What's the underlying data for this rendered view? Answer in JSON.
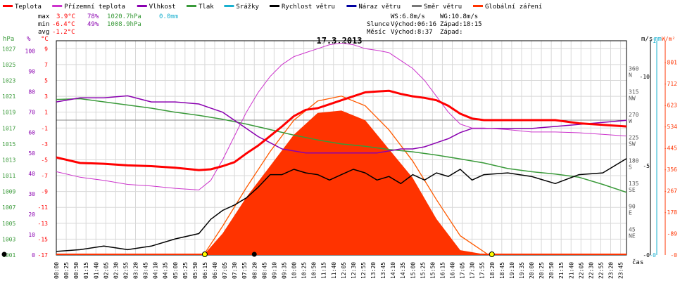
{
  "legend": [
    {
      "label": "Teplota",
      "color": "#ff0000"
    },
    {
      "label": "Přízemní teplota",
      "color": "#cc33cc"
    },
    {
      "label": "Vlhkost",
      "color": "#8a00b0"
    },
    {
      "label": "Tlak",
      "color": "#3a9a3a"
    },
    {
      "label": "Srážky",
      "color": "#19b0cf"
    },
    {
      "label": "Rychlost větru",
      "color": "#000000"
    },
    {
      "label": "Náraz větru",
      "color": "#0000a0"
    },
    {
      "label": "Směr větru",
      "color": "#777777"
    },
    {
      "label": "Globální záření",
      "color": "#ff3300"
    }
  ],
  "stats": {
    "max": {
      "label": "max",
      "temp": "3.9°C",
      "hum": "78%",
      "press": "1020.7hPa",
      "rain": "0.0mm"
    },
    "min": {
      "label": "min",
      "temp": "-6.4°C",
      "hum": "49%",
      "press": "1008.9hPa"
    },
    "avg": {
      "label": "avg",
      "temp": "-1.2°C"
    }
  },
  "wind": {
    "ws": "WS:6.8m/s",
    "wg": "WG:10.8m/s"
  },
  "sun": {
    "label": "Slunce",
    "rise": "Východ:06:16",
    "set": "Západ:18:15"
  },
  "moon": {
    "label": "Měsíc",
    "rise": "Východ:8:37",
    "set": "Západ:"
  },
  "date": "17.3.2013",
  "units": {
    "hpa": "hPa",
    "pct": "%",
    "degc": "°C",
    "ms": "m/s",
    "mm": "mm",
    "wm2": "W/m²",
    "time": "čas"
  },
  "chart_data": {
    "type": "line",
    "title": "17.3.2013",
    "xlabel": "čas",
    "x_ticks": [
      "00:00",
      "00:25",
      "00:50",
      "01:15",
      "01:40",
      "02:05",
      "02:30",
      "02:55",
      "03:20",
      "03:45",
      "04:10",
      "04:35",
      "05:00",
      "05:25",
      "05:50",
      "06:15",
      "06:40",
      "07:05",
      "07:30",
      "07:55",
      "08:20",
      "08:45",
      "09:10",
      "09:35",
      "10:00",
      "10:25",
      "10:50",
      "11:15",
      "11:40",
      "12:05",
      "12:30",
      "12:55",
      "13:20",
      "13:45",
      "14:10",
      "14:35",
      "15:00",
      "15:25",
      "15:50",
      "16:15",
      "16:40",
      "17:05",
      "17:30",
      "17:55",
      "18:20",
      "18:45",
      "19:10",
      "19:35",
      "20:00",
      "20:25",
      "20:50",
      "21:15",
      "21:40",
      "22:05",
      "22:30",
      "22:55",
      "23:20",
      "23:45"
    ],
    "axes": {
      "pressure_hpa": {
        "ticks": [
          "1027",
          "1025",
          "1023",
          "1021",
          "1019",
          "1017",
          "1015",
          "1013",
          "1011",
          "1009",
          "1007",
          "1005",
          "1003",
          "1001"
        ],
        "range": [
          1001,
          1028
        ]
      },
      "humidity_pct": {
        "ticks": [
          "100",
          "90",
          "80",
          "70",
          "60",
          "50",
          "40",
          "30",
          "20",
          "10",
          "0"
        ],
        "range": [
          0,
          105
        ]
      },
      "temperature_c": {
        "ticks": [
          "9",
          "7",
          "5",
          "3",
          "1",
          "-1",
          "-3",
          "-5",
          "-7",
          "-9",
          "-11",
          "-13",
          "-15",
          "-17"
        ],
        "range": [
          -17,
          10
        ]
      },
      "wind_dir": {
        "ticks": [
          "360\nN",
          "315\nNW",
          "270\nW",
          "225\nSW",
          "180\nS",
          "135\nSE",
          "90\nE",
          "45\nNE"
        ],
        "range": [
          0,
          420
        ]
      },
      "radiation_wm2": {
        "ticks": [
          "801",
          "712",
          "623",
          "534",
          "445",
          "356",
          "267",
          "178",
          "89",
          "0"
        ],
        "range": [
          0,
          890
        ]
      },
      "wind_ms": {
        "ticks": [
          "10",
          "5",
          "0"
        ],
        "range": [
          0,
          12
        ]
      },
      "rain_mm": {
        "ticks": [
          "1",
          "0"
        ],
        "range": [
          0,
          1
        ]
      }
    },
    "series": [
      {
        "name": "Teplota",
        "axis": "temperature_c",
        "x": [
          0,
          1,
          2,
          3,
          4,
          5,
          6,
          6.5,
          7,
          7.5,
          8,
          8.5,
          9,
          9.5,
          10,
          10.5,
          11,
          11.5,
          12,
          12.5,
          13,
          13.5,
          14,
          14.5,
          15,
          15.5,
          16,
          16.5,
          17,
          17.5,
          18,
          19,
          20,
          21,
          22,
          23,
          24
        ],
        "values": [
          -4.7,
          -5.4,
          -5.5,
          -5.7,
          -5.8,
          -6.0,
          -6.3,
          -6.2,
          -5.8,
          -5.3,
          -4.2,
          -3.2,
          -2.0,
          -0.8,
          0.5,
          1.3,
          1.5,
          2.0,
          2.5,
          3.0,
          3.5,
          3.6,
          3.7,
          3.3,
          3.0,
          2.8,
          2.5,
          1.8,
          0.8,
          0.2,
          0.0,
          0.0,
          0.0,
          0.0,
          -0.4,
          -0.6,
          -0.8
        ]
      },
      {
        "name": "Přízemní teplota",
        "axis": "temperature_c",
        "x": [
          0,
          1,
          2,
          3,
          4,
          5,
          6,
          6.5,
          7,
          7.5,
          8,
          8.5,
          9,
          9.5,
          10,
          10.5,
          11,
          11.5,
          12,
          12.5,
          13,
          13.5,
          14,
          14.5,
          15,
          15.5,
          16,
          16.5,
          17,
          17.5,
          18,
          19,
          20,
          21,
          22,
          23,
          24
        ],
        "values": [
          -6.5,
          -7.2,
          -7.6,
          -8.1,
          -8.3,
          -8.6,
          -8.8,
          -7.6,
          -5.0,
          -2.0,
          1.0,
          3.5,
          5.5,
          7.0,
          8.0,
          8.5,
          9.0,
          9.5,
          9.7,
          9.5,
          9.0,
          8.8,
          8.5,
          7.5,
          6.5,
          5.0,
          3.0,
          1.0,
          -0.5,
          -1.0,
          -1.0,
          -1.2,
          -1.5,
          -1.5,
          -1.6,
          -1.8,
          -2.0
        ]
      },
      {
        "name": "Vlhkost",
        "axis": "humidity_pct",
        "x": [
          0,
          1,
          2,
          3,
          4,
          5,
          6,
          6.5,
          7,
          7.5,
          8,
          8.5,
          9,
          9.5,
          10,
          10.5,
          11,
          11.5,
          12,
          12.5,
          13,
          13.5,
          14,
          14.5,
          15,
          15.5,
          16,
          16.5,
          17,
          17.5,
          18,
          19,
          20,
          21,
          22,
          23,
          24
        ],
        "values": [
          75,
          77,
          77,
          78,
          75,
          75,
          74,
          72,
          70,
          66,
          62,
          58,
          55,
          52,
          51,
          50,
          50,
          50,
          50,
          50,
          50,
          50,
          51,
          52,
          52,
          53,
          55,
          57,
          60,
          62,
          62,
          62,
          62,
          63,
          64,
          65,
          66
        ]
      },
      {
        "name": "Tlak",
        "axis": "pressure_hpa",
        "x": [
          0,
          1,
          2,
          3,
          4,
          5,
          6,
          7,
          8,
          9,
          10,
          11,
          12,
          13,
          14,
          15,
          16,
          17,
          18,
          19,
          20,
          21,
          22,
          23,
          24
        ],
        "values": [
          1020.6,
          1020.7,
          1020.3,
          1019.9,
          1019.5,
          1019.0,
          1018.6,
          1018.1,
          1017.5,
          1016.8,
          1016.1,
          1015.5,
          1015.0,
          1014.7,
          1014.3,
          1014.0,
          1013.6,
          1013.1,
          1012.6,
          1011.9,
          1011.5,
          1011.2,
          1010.8,
          1009.9,
          1008.9
        ]
      },
      {
        "name": "Rychlost větru",
        "axis": "wind_ms",
        "x": [
          0,
          1,
          2,
          3,
          4,
          5,
          6,
          6.5,
          7,
          7.5,
          8,
          8.5,
          9,
          9.5,
          10,
          10.5,
          11,
          11.5,
          12,
          12.5,
          13,
          13.5,
          14,
          14.5,
          15,
          15.5,
          16,
          16.5,
          17,
          17.5,
          18,
          19,
          20,
          21,
          22,
          23,
          24
        ],
        "values": [
          0.2,
          0.3,
          0.5,
          0.3,
          0.5,
          0.9,
          1.2,
          2.0,
          2.5,
          2.8,
          3.2,
          3.8,
          4.5,
          4.5,
          4.8,
          4.6,
          4.5,
          4.2,
          4.5,
          4.8,
          4.6,
          4.2,
          4.4,
          4.0,
          4.5,
          4.2,
          4.6,
          4.4,
          4.8,
          4.2,
          4.5,
          4.6,
          4.4,
          4.0,
          4.5,
          4.6,
          5.4
        ]
      },
      {
        "name": "Globální záření",
        "axis": "radiation_wm2",
        "x": [
          6.2,
          7,
          8,
          9,
          10,
          11,
          12,
          13,
          14,
          15,
          16,
          17,
          18.2
        ],
        "values": [
          0,
          90,
          240,
          370,
          500,
          590,
          600,
          560,
          440,
          320,
          150,
          20,
          0
        ]
      }
    ],
    "clear_sky_radiation": {
      "x": [
        6.2,
        7,
        8,
        9,
        10,
        11,
        12,
        13,
        14,
        15,
        16,
        17,
        18.2
      ],
      "values": [
        0,
        120,
        280,
        430,
        560,
        640,
        660,
        620,
        520,
        390,
        230,
        80,
        0
      ]
    },
    "sunrise": "06:15",
    "sunset": "18:20",
    "moonrise": "08:20"
  }
}
